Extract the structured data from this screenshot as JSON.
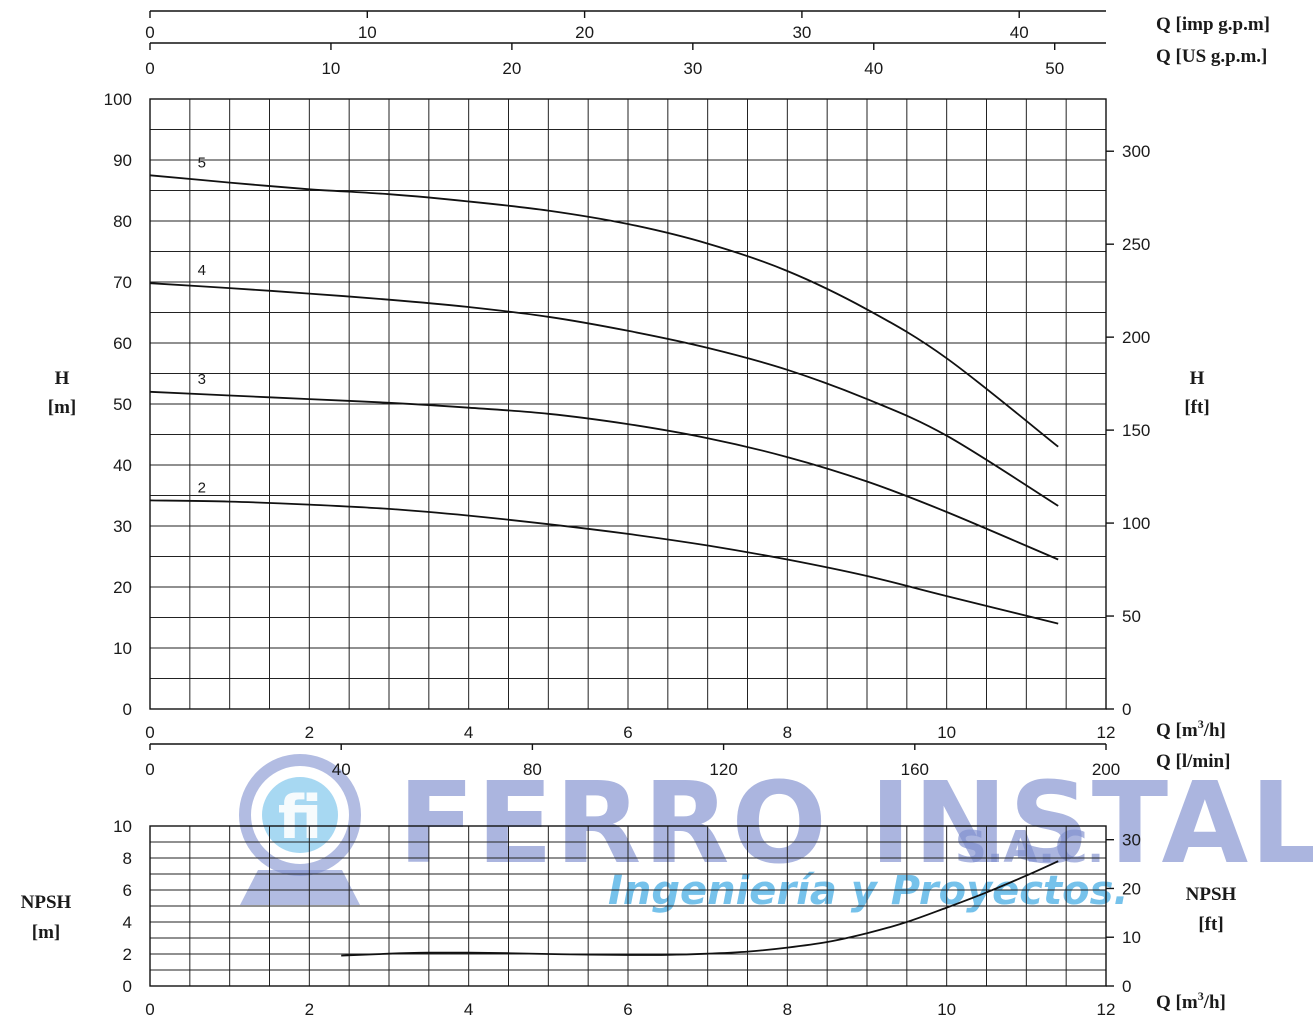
{
  "chart_data": [
    {
      "type": "line",
      "title": "",
      "xlabel": "Q [m3/h]",
      "xlabel_secondary": "Q [l/min]",
      "xlabel_top_1": "Q [imp g.p.m]",
      "xlabel_top_2": "Q [US g.p.m.]",
      "ylabel": "H [m]",
      "ylabel_right": "H [ft]",
      "xlim": [
        0,
        12
      ],
      "ylim": [
        0,
        100
      ],
      "x_ticks": [
        0,
        2,
        4,
        6,
        8,
        10,
        12
      ],
      "y_ticks": [
        0,
        10,
        20,
        30,
        40,
        50,
        60,
        70,
        80,
        90,
        100
      ],
      "y_right_ticks": [
        0,
        50,
        100,
        150,
        200,
        250,
        300
      ],
      "lmin_ticks": [
        0,
        40,
        80,
        120,
        160,
        200
      ],
      "us_gpm_ticks": [
        0,
        10,
        20,
        30,
        40,
        50
      ],
      "imp_gpm_ticks": [
        0,
        10,
        20,
        30,
        40
      ],
      "grid": true,
      "series": [
        {
          "name": "2",
          "x": [
            0,
            1,
            2,
            3,
            4,
            5,
            6,
            7,
            8,
            9,
            10,
            11.4
          ],
          "y": [
            34.2,
            34.0,
            33.5,
            32.8,
            31.7,
            30.3,
            28.7,
            26.8,
            24.5,
            21.8,
            18.5,
            14.0
          ]
        },
        {
          "name": "3",
          "x": [
            0,
            1,
            2,
            3,
            4,
            5,
            6,
            7,
            8,
            9,
            10,
            11.4
          ],
          "y": [
            52.0,
            51.4,
            50.8,
            50.2,
            49.4,
            48.4,
            46.7,
            44.4,
            41.3,
            37.3,
            32.3,
            24.5
          ]
        },
        {
          "name": "4",
          "x": [
            0,
            1,
            2,
            3,
            4,
            5,
            6,
            7,
            8,
            9,
            10,
            11.4
          ],
          "y": [
            69.8,
            69.0,
            68.1,
            67.1,
            65.9,
            64.3,
            62.0,
            59.2,
            55.6,
            50.8,
            44.8,
            33.3
          ]
        },
        {
          "name": "5",
          "x": [
            0,
            1,
            2,
            3,
            4,
            5,
            6,
            7,
            8,
            9,
            10,
            11.4
          ],
          "y": [
            87.5,
            86.3,
            85.2,
            84.4,
            83.2,
            81.7,
            79.5,
            76.3,
            71.8,
            65.5,
            57.5,
            43.0
          ]
        }
      ]
    },
    {
      "type": "line",
      "title": "",
      "xlabel": "Q [m3/h]",
      "ylabel": "NPSH [m]",
      "ylabel_right": "NPSH [ft]",
      "xlim": [
        0,
        12
      ],
      "ylim": [
        0,
        10
      ],
      "x_ticks": [
        0,
        2,
        4,
        6,
        8,
        10,
        12
      ],
      "y_ticks": [
        0,
        2,
        4,
        6,
        8,
        10
      ],
      "y_right_ticks": [
        0,
        10,
        20,
        30
      ],
      "grid": true,
      "series": [
        {
          "name": "NPSH",
          "x": [
            2.4,
            3,
            3.5,
            4,
            4.5,
            5,
            5.5,
            6,
            6.5,
            7,
            7.5,
            8,
            8.5,
            9,
            9.5,
            10,
            10.5,
            11,
            11.4
          ],
          "y": [
            1.9,
            2.02,
            2.08,
            2.08,
            2.05,
            2.0,
            1.96,
            1.94,
            1.95,
            2.02,
            2.15,
            2.4,
            2.75,
            3.3,
            4.0,
            4.9,
            5.85,
            6.9,
            7.8
          ]
        }
      ]
    }
  ],
  "labels": {
    "h_m_1": "H",
    "h_m_2": "[m]",
    "h_ft_1": "H",
    "h_ft_2": "[ft]",
    "npsh_m_1": "NPSH",
    "npsh_m_2": "[m]",
    "npsh_ft_1": "NPSH",
    "npsh_ft_2": "[ft]",
    "q_imp": "Q [imp g.p.m]",
    "q_us": "Q [US g.p.m.]",
    "q_m3h_main_a": "Q [m",
    "q_m3h_main_sup": "3",
    "q_m3h_main_b": "/h]",
    "q_lmin": "Q [l/min]",
    "q_m3h_npsh_a": "Q [m",
    "q_m3h_npsh_sup": "3",
    "q_m3h_npsh_b": "/h]"
  },
  "watermark": {
    "main": "FERRO INSTALL",
    "suffix": "S.A.C.",
    "subtitle": "Ingeniería y Proyectos.",
    "logo_letters": "fi",
    "colors": {
      "main": "#7f8fcf",
      "subtitle": "#5fb8e8"
    }
  }
}
